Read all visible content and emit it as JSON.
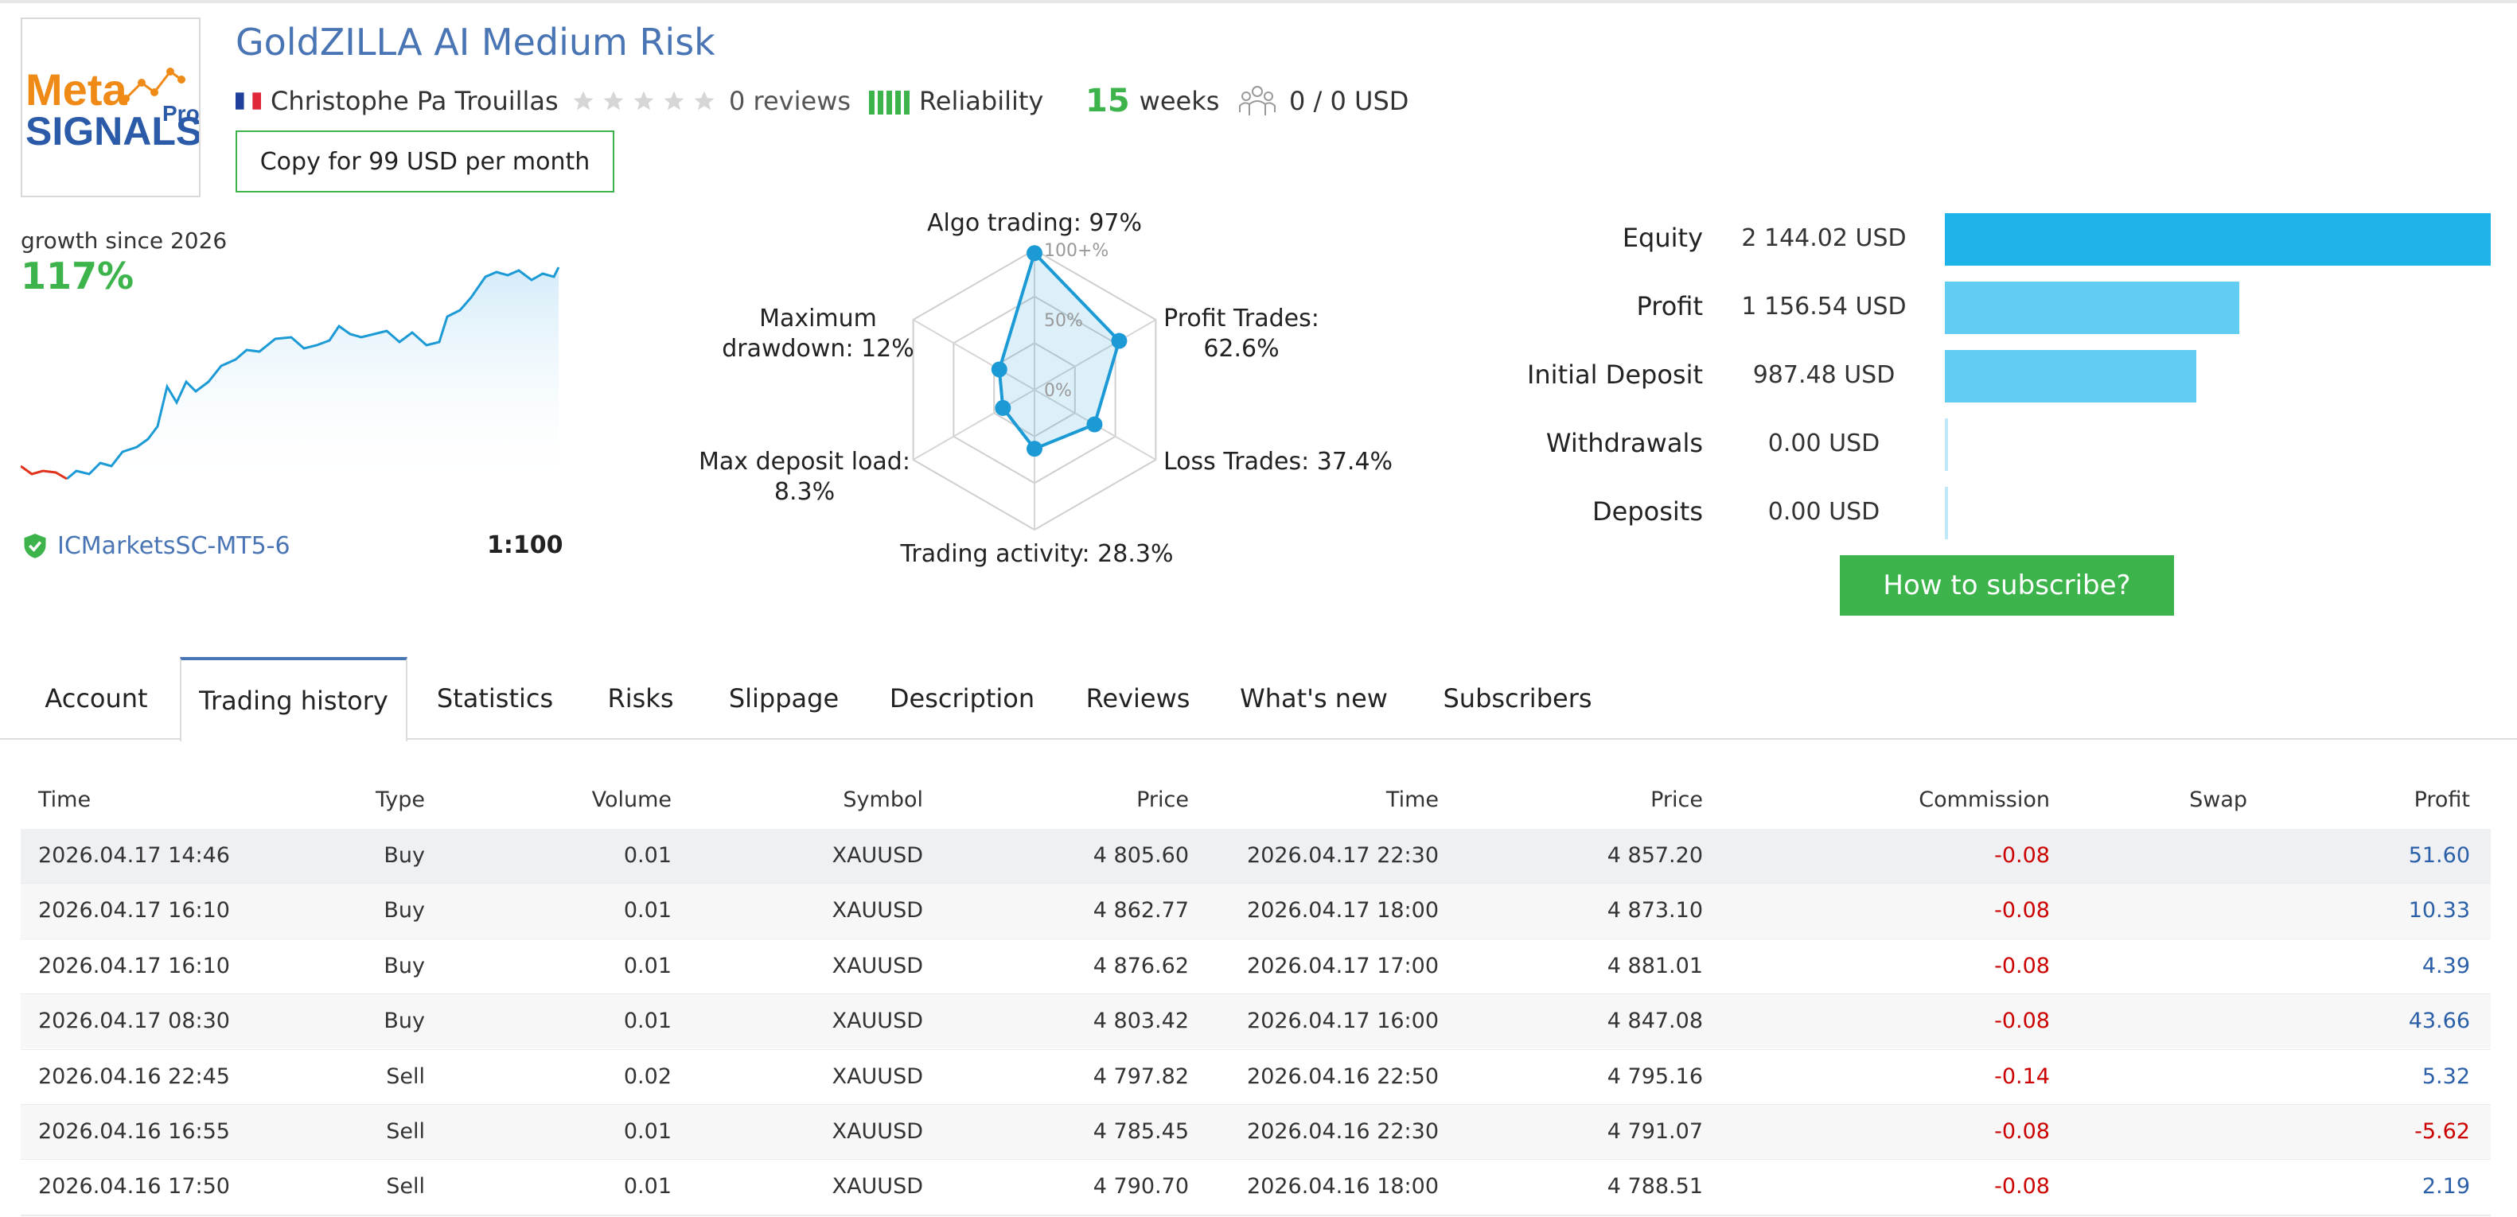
{
  "header": {
    "title": "GoldZILLA AI Medium Risk",
    "author": "Christophe Pa Trouillas",
    "reviews": "0 reviews",
    "reliability": "Reliability",
    "weeks_num": "15",
    "weeks_label": "weeks",
    "subscribers": "0 / 0 USD",
    "copy_button": "Copy for 99 USD per month",
    "logo_text_meta": "Meta",
    "logo_text_signals": "SIGNALS",
    "logo_text_pro": "Pro"
  },
  "growth": {
    "label": "growth since 2026",
    "value": "117%",
    "broker": "ICMarketsSC-MT5-6",
    "leverage": "1:100"
  },
  "radar": {
    "algo": "Algo trading: 97%",
    "profit_trades": "Profit Trades:",
    "profit_trades_val": "62.6%",
    "loss_trades": "Loss Trades: 37.4%",
    "activity": "Trading activity: 28.3%",
    "load_1": "Max deposit load:",
    "load_2": "8.3%",
    "dd_1": "Maximum",
    "dd_2": "drawdown: 12%",
    "ticks": [
      "100+%",
      "50%",
      "0%"
    ],
    "values": {
      "algo": 0.97,
      "profit_trades": 0.626,
      "loss_trades": 0.374,
      "activity": 0.283,
      "max_deposit_load": 0.083,
      "max_drawdown": 0.12
    }
  },
  "finance": {
    "items": [
      {
        "label": "Equity",
        "value": "2 144.02 USD",
        "amount": 2144.02
      },
      {
        "label": "Profit",
        "value": "1 156.54 USD",
        "amount": 1156.54
      },
      {
        "label": "Initial Deposit",
        "value": "987.48 USD",
        "amount": 987.48
      },
      {
        "label": "Withdrawals",
        "value": "0.00 USD",
        "amount": 0
      },
      {
        "label": "Deposits",
        "value": "0.00 USD",
        "amount": 0
      }
    ],
    "subscribe_button": "How to subscribe?",
    "colors": {
      "equity": "#1eb4ea",
      "other": "#62cdf3",
      "zero": "#bfe8f8"
    }
  },
  "tabs": [
    "Account",
    "Trading history",
    "Statistics",
    "Risks",
    "Slippage",
    "Description",
    "Reviews",
    "What's new",
    "Subscribers"
  ],
  "active_tab": "Trading history",
  "table": {
    "headers": [
      "Time",
      "Type",
      "Volume",
      "Symbol",
      "Price",
      "Time",
      "Price",
      "Commission",
      "Swap",
      "Profit"
    ],
    "rows": [
      [
        "2026.04.17 14:46",
        "Buy",
        "0.01",
        "XAUUSD",
        "4 805.60",
        "2026.04.17 22:30",
        "4 857.20",
        "-0.08",
        "",
        "51.60"
      ],
      [
        "2026.04.17 16:10",
        "Buy",
        "0.01",
        "XAUUSD",
        "4 862.77",
        "2026.04.17 18:00",
        "4 873.10",
        "-0.08",
        "",
        "10.33"
      ],
      [
        "2026.04.17 16:10",
        "Buy",
        "0.01",
        "XAUUSD",
        "4 876.62",
        "2026.04.17 17:00",
        "4 881.01",
        "-0.08",
        "",
        "4.39"
      ],
      [
        "2026.04.17 08:30",
        "Buy",
        "0.01",
        "XAUUSD",
        "4 803.42",
        "2026.04.17 16:00",
        "4 847.08",
        "-0.08",
        "",
        "43.66"
      ],
      [
        "2026.04.16 22:45",
        "Sell",
        "0.02",
        "XAUUSD",
        "4 797.82",
        "2026.04.16 22:50",
        "4 795.16",
        "-0.14",
        "",
        "5.32"
      ],
      [
        "2026.04.16 16:55",
        "Sell",
        "0.01",
        "XAUUSD",
        "4 785.45",
        "2026.04.16 22:30",
        "4 791.07",
        "-0.08",
        "",
        "-5.62"
      ],
      [
        "2026.04.16 17:50",
        "Sell",
        "0.01",
        "XAUUSD",
        "4 790.70",
        "2026.04.16 18:00",
        "4 788.51",
        "-0.08",
        "",
        "2.19"
      ]
    ]
  },
  "colors": {
    "accent_blue": "#4a75b5",
    "green": "#3cb44b",
    "negative_red": "#cc0000",
    "chart_line": "#1b9ad6"
  }
}
